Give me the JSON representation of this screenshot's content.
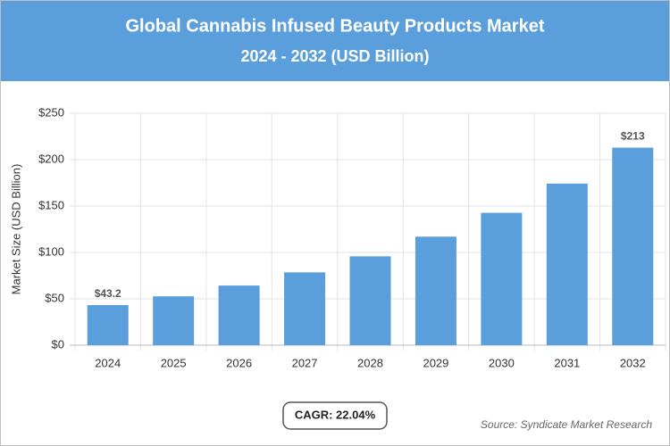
{
  "chart_data": {
    "type": "bar",
    "title": "Global Cannabis Infused Beauty Products Market",
    "subtitle": "2024 - 2032 (USD Billion)",
    "y_label": "Market Size (USD Billion)",
    "categories": [
      "2024",
      "2025",
      "2026",
      "2027",
      "2028",
      "2029",
      "2030",
      "2031",
      "2032"
    ],
    "values": [
      43.2,
      52.7,
      64.3,
      78.5,
      95.8,
      117,
      142.7,
      174.2,
      213
    ],
    "value_labels": [
      "$43.2",
      null,
      null,
      null,
      null,
      null,
      null,
      null,
      "$213"
    ],
    "color": "#5b9edc",
    "ylim": [
      0,
      250
    ],
    "yticks": [
      {
        "value": 0,
        "label": "$0"
      },
      {
        "value": 50,
        "label": "$50"
      },
      {
        "value": 100,
        "label": "$100"
      },
      {
        "value": 150,
        "label": "$150"
      },
      {
        "value": 200,
        "label": "$200"
      },
      {
        "value": 250,
        "label": "$250"
      }
    ],
    "grid": true,
    "cagr_label": "CAGR: 22.04%",
    "source": "Source: Syndicate Market Research"
  }
}
